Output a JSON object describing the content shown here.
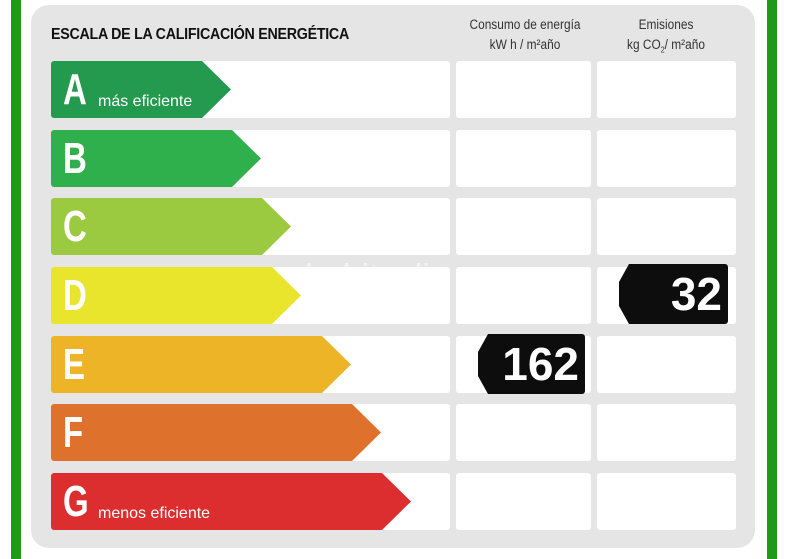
{
  "title": "ESCALA DE LA CALIFICACIÓN ENERGÉTICA",
  "columns": {
    "energy": {
      "line1": "Consumo de energía",
      "line2": "kW h / m²año"
    },
    "emissions": {
      "line1": "Emisiones",
      "line2_prefix": "kg CO",
      "line2_sub": "2",
      "line2_suffix": "/ m²año"
    }
  },
  "ratings": [
    {
      "letter": "A",
      "label": "más eficiente",
      "color": "#249a4f"
    },
    {
      "letter": "B",
      "label": "",
      "color": "#2fb04c"
    },
    {
      "letter": "C",
      "label": "",
      "color": "#9bc93f"
    },
    {
      "letter": "D",
      "label": "",
      "color": "#e8e52c"
    },
    {
      "letter": "E",
      "label": "",
      "color": "#ecb426"
    },
    {
      "letter": "F",
      "label": "",
      "color": "#de722d"
    },
    {
      "letter": "G",
      "label": "menos eficiente",
      "color": "#dc2e2f"
    }
  ],
  "energy_value": {
    "value": "162",
    "rating": "E"
  },
  "emissions_value": {
    "value": "32",
    "rating": "D"
  },
  "watermark": "habitaclia",
  "accent_color": "#1f9a16"
}
